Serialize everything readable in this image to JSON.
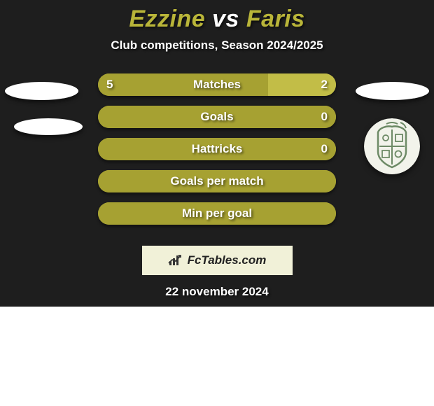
{
  "title": {
    "player1": "Ezzine",
    "vs": "vs",
    "player2": "Faris",
    "color_player1": "#b9b539",
    "color_vs": "#ffffff",
    "color_player2": "#b9b539",
    "fontsize": 34
  },
  "subtitle": "Club competitions, Season 2024/2025",
  "colors": {
    "background": "#1e1e1e",
    "bar_primary": "#a6a132",
    "bar_secondary": "#c2bd47",
    "shadow_white": "#ffffff",
    "crest_bg": "#f2f3eb",
    "crest_fg": "#6d8a66",
    "badge_bg": "#f1f1d8",
    "text_white": "#ffffff"
  },
  "bars": [
    {
      "label": "Matches",
      "left": "5",
      "right": "2",
      "left_pct": 71.4,
      "right_pct": 28.6
    },
    {
      "label": "Goals",
      "left": "",
      "right": "0",
      "left_pct": 100,
      "right_pct": 0
    },
    {
      "label": "Hattricks",
      "left": "",
      "right": "0",
      "left_pct": 100,
      "right_pct": 0
    },
    {
      "label": "Goals per match",
      "left": "",
      "right": "",
      "left_pct": 100,
      "right_pct": 0
    },
    {
      "label": "Min per goal",
      "left": "",
      "right": "",
      "left_pct": 100,
      "right_pct": 0
    }
  ],
  "footer_brand": "FcTables.com",
  "date": "22 november 2024"
}
